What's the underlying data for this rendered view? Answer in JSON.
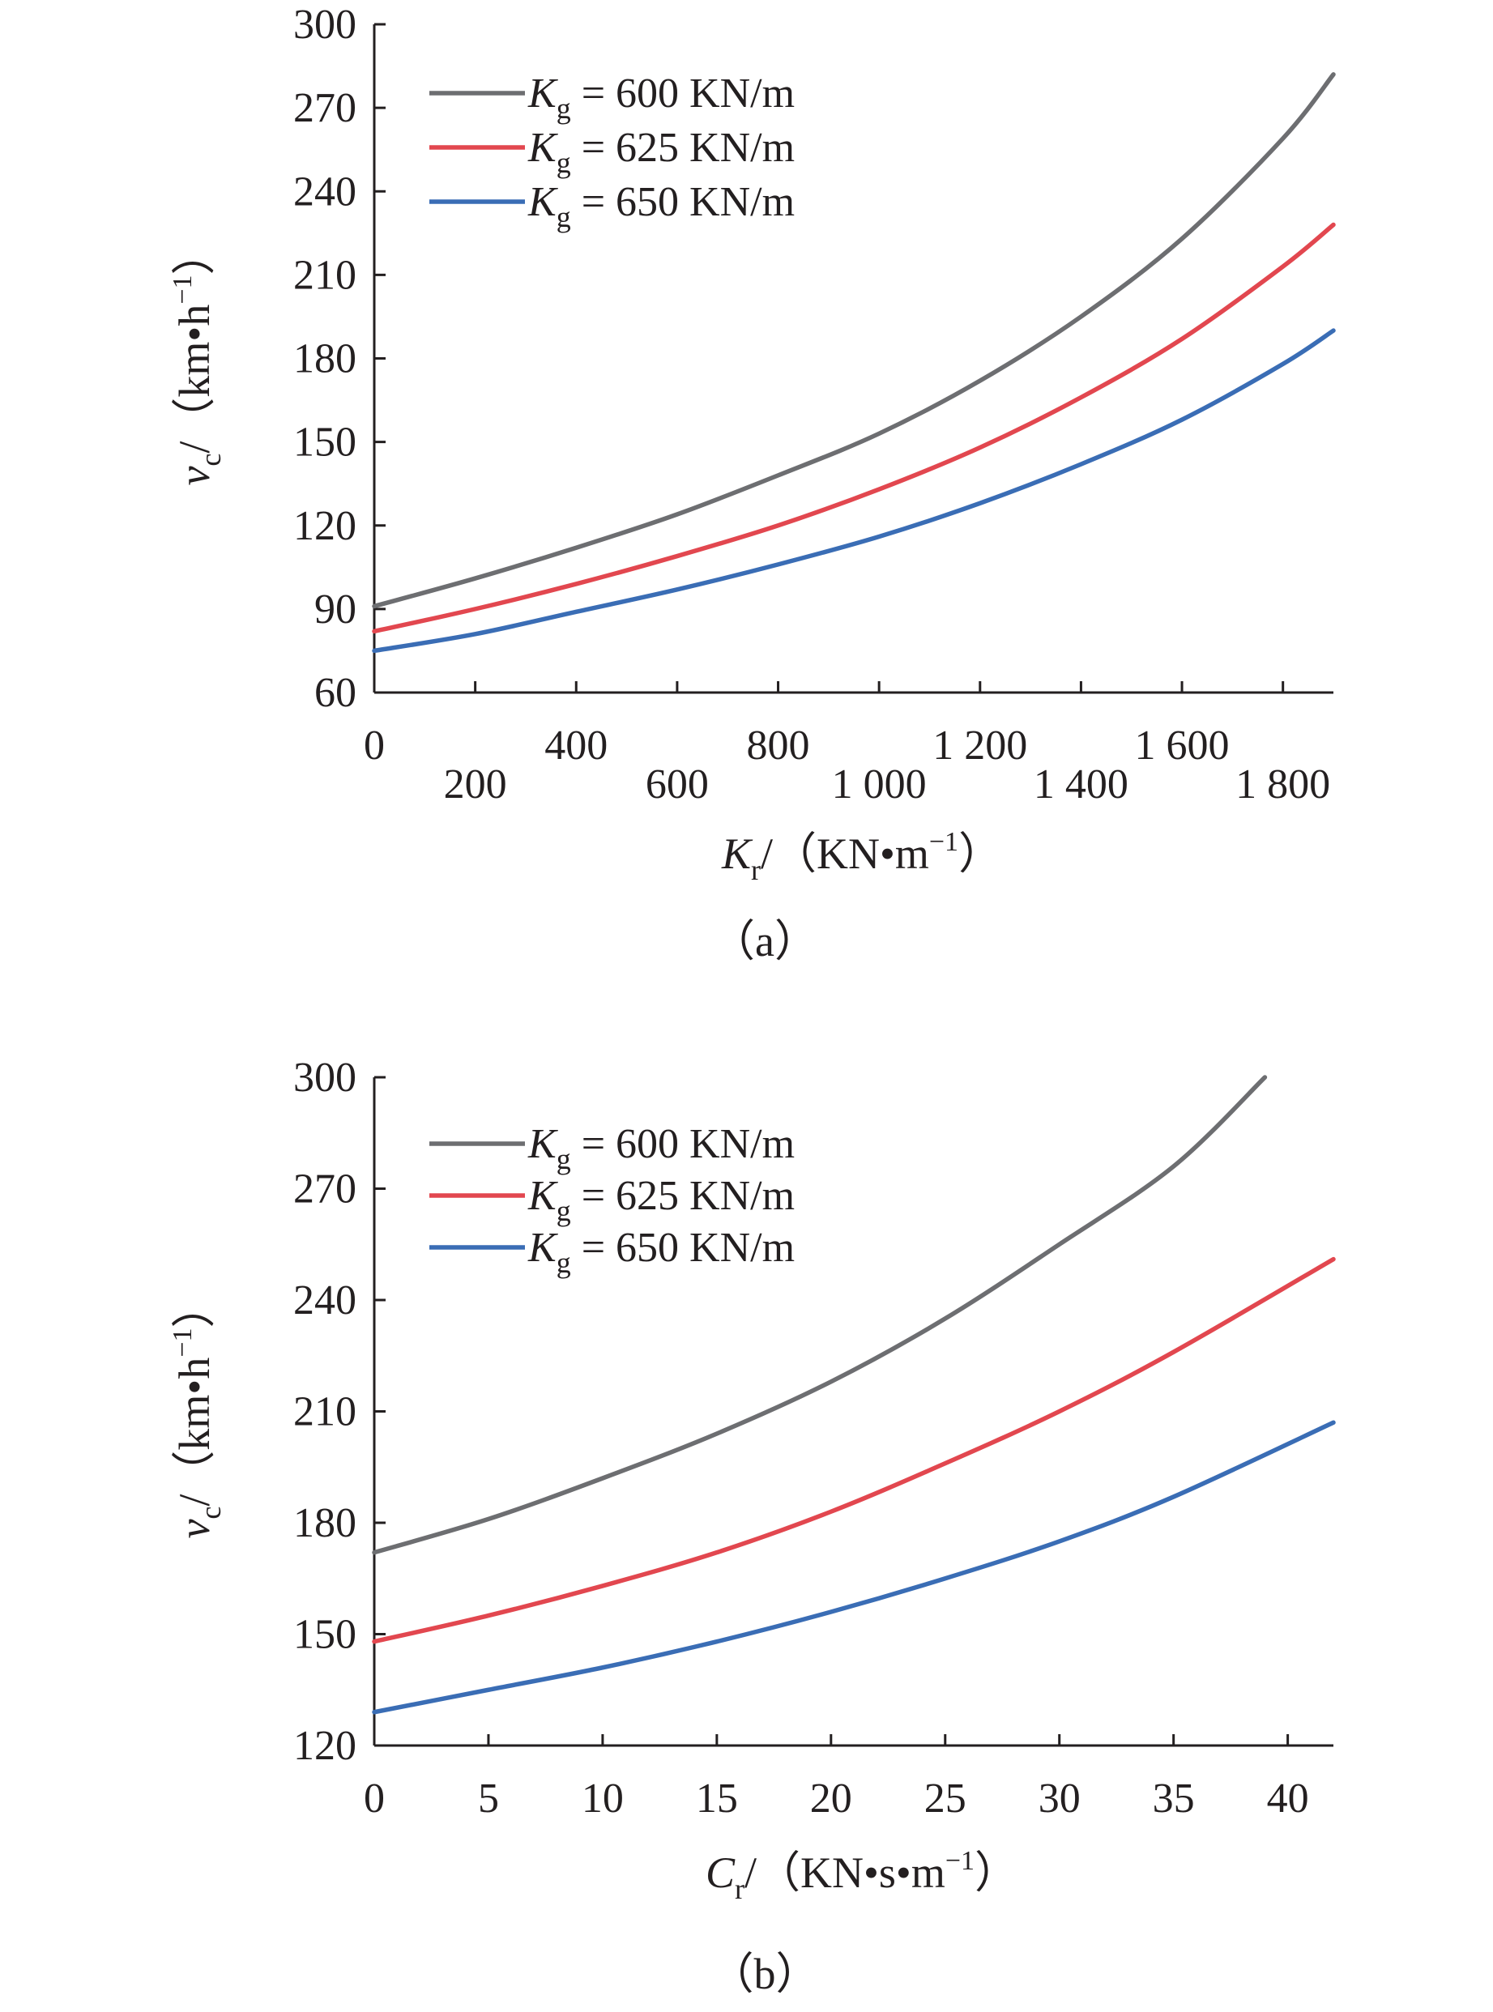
{
  "chart_data": [
    {
      "type": "line",
      "panel_label": "（a）",
      "xlabel": {
        "symbol": "K",
        "sub": "r",
        "unit_prefix": "/（KN•m",
        "sup": "−1",
        "unit_suffix": "）"
      },
      "ylabel": {
        "symbol": "v",
        "sub": "c",
        "unit_prefix": "/（km•h",
        "sup": "−1",
        "unit_suffix": "）"
      },
      "xlim": [
        0,
        1900
      ],
      "ylim": [
        60,
        300
      ],
      "x_ticks": [
        0,
        200,
        400,
        600,
        800,
        1000,
        1200,
        1400,
        1600,
        1800
      ],
      "x_tick_labels": [
        "0",
        "200",
        "400",
        "600",
        "800",
        "1 000",
        "1 200",
        "1 400",
        "1 600",
        "1 800"
      ],
      "y_ticks": [
        60,
        90,
        120,
        150,
        180,
        210,
        240,
        270,
        300
      ],
      "y_tick_labels": [
        "60",
        "90",
        "120",
        "150",
        "180",
        "210",
        "240",
        "270",
        "300"
      ],
      "legend_position": "top-left",
      "series": [
        {
          "name_symbol": "K",
          "name_sub": "g",
          "name_rest": " = 600 KN/m",
          "color": "#6d6e71",
          "x": [
            0,
            200,
            400,
            600,
            800,
            1000,
            1200,
            1400,
            1600,
            1800,
            1900
          ],
          "y": [
            91,
            101,
            112,
            124,
            138,
            153,
            172,
            195,
            223,
            259,
            282
          ]
        },
        {
          "name_symbol": "K",
          "name_sub": "g",
          "name_rest": " = 625 KN/m",
          "color": "#e2474f",
          "x": [
            0,
            200,
            400,
            600,
            800,
            1000,
            1200,
            1400,
            1600,
            1800,
            1900
          ],
          "y": [
            82,
            90,
            99,
            109,
            120,
            133,
            148,
            166,
            187,
            213,
            228
          ]
        },
        {
          "name_symbol": "K",
          "name_sub": "g",
          "name_rest": " = 650 KN/m",
          "color": "#3a6db5",
          "x": [
            0,
            200,
            400,
            600,
            800,
            1000,
            1200,
            1400,
            1600,
            1800,
            1900
          ],
          "y": [
            75,
            81,
            89,
            97,
            106,
            116,
            128,
            142,
            158,
            178,
            190
          ]
        }
      ]
    },
    {
      "type": "line",
      "panel_label": "（b）",
      "xlabel": {
        "symbol": "C",
        "sub": "r",
        "unit_prefix": "/（KN•s•m",
        "sup": "−1",
        "unit_suffix": "）"
      },
      "ylabel": {
        "symbol": "v",
        "sub": "c",
        "unit_prefix": "/（km•h",
        "sup": "−1",
        "unit_suffix": "）"
      },
      "xlim": [
        0,
        42
      ],
      "ylim": [
        120,
        300
      ],
      "x_ticks": [
        0,
        5,
        10,
        15,
        20,
        25,
        30,
        35,
        40
      ],
      "x_tick_labels": [
        "0",
        "5",
        "10",
        "15",
        "20",
        "25",
        "30",
        "35",
        "40"
      ],
      "y_ticks": [
        120,
        150,
        180,
        210,
        240,
        270,
        300
      ],
      "y_tick_labels": [
        "120",
        "150",
        "180",
        "210",
        "240",
        "270",
        "300"
      ],
      "legend_position": "top-left",
      "series": [
        {
          "name_symbol": "K",
          "name_sub": "g",
          "name_rest": " = 600 KN/m",
          "color": "#6d6e71",
          "x": [
            0,
            5,
            10,
            15,
            20,
            25,
            30,
            35,
            39
          ],
          "y": [
            172,
            181,
            192,
            204,
            218,
            235,
            255,
            276,
            300
          ]
        },
        {
          "name_symbol": "K",
          "name_sub": "g",
          "name_rest": " = 625 KN/m",
          "color": "#e2474f",
          "x": [
            0,
            5,
            10,
            15,
            20,
            25,
            30,
            35,
            42
          ],
          "y": [
            148,
            155,
            163,
            172,
            183,
            196,
            210,
            226,
            251
          ]
        },
        {
          "name_symbol": "K",
          "name_sub": "g",
          "name_rest": " = 650 KN/m",
          "color": "#3a6db5",
          "x": [
            0,
            5,
            10,
            15,
            20,
            25,
            30,
            35,
            42
          ],
          "y": [
            129,
            135,
            141,
            148,
            156,
            165,
            175,
            187,
            207
          ]
        }
      ]
    }
  ]
}
